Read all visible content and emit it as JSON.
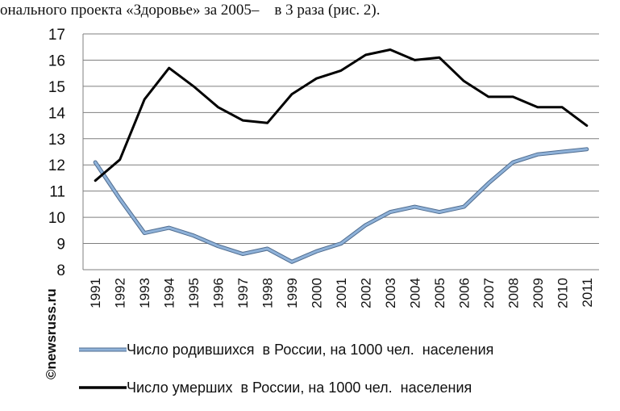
{
  "document": {
    "text_line": "онального проекта «Здоровье» за 2005–    в 3 раза (рис. 2)."
  },
  "watermark": "©newsruss.ru",
  "colors": {
    "births": "#8fb2d9",
    "births_outline": "#4f6c8f",
    "deaths": "#000000",
    "grid": "#7f7f7f"
  },
  "chart_data": {
    "type": "line",
    "title": "",
    "xlabel": "",
    "ylabel": "",
    "ylim": [
      8,
      17
    ],
    "yticks": [
      8,
      9,
      10,
      11,
      12,
      13,
      14,
      15,
      16,
      17
    ],
    "grid": "horizontal",
    "legend_position": "bottom",
    "categories": [
      "1991",
      "1992",
      "1993",
      "1994",
      "1995",
      "1996",
      "1997",
      "1998",
      "1999",
      "2000",
      "2001",
      "2002",
      "2003",
      "2004",
      "2005",
      "2006",
      "2007",
      "2008",
      "2009",
      "2010",
      "2011"
    ],
    "series": [
      {
        "name": "Число родившихся  в России, на 1000 чел.  населения",
        "key": "births",
        "values": [
          12.1,
          10.7,
          9.4,
          9.6,
          9.3,
          8.9,
          8.6,
          8.8,
          8.3,
          8.7,
          9.0,
          9.7,
          10.2,
          10.4,
          10.2,
          10.4,
          11.3,
          12.1,
          12.4,
          12.5,
          12.6
        ]
      },
      {
        "name": "Число умерших  в России, на 1000 чел.  населения",
        "key": "deaths",
        "values": [
          11.4,
          12.2,
          14.5,
          15.7,
          15.0,
          14.2,
          13.7,
          13.6,
          14.7,
          15.3,
          15.6,
          16.2,
          16.4,
          16.0,
          16.1,
          15.2,
          14.6,
          14.6,
          14.2,
          14.2,
          13.5
        ]
      }
    ]
  }
}
